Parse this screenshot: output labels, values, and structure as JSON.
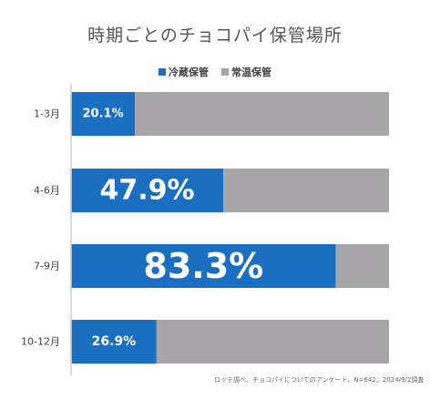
{
  "colors": {
    "refrigerated": "#1a6fc2",
    "room_temp": "#a7a5a7",
    "axis": "#cfcfcf"
  },
  "note": "ロッテ調べ、チョコパイについてのアンケート。N=642。2024/9/2調査",
  "chart_data": {
    "type": "bar",
    "orientation": "horizontal",
    "stacked": true,
    "title": "時期ごとのチョコパイ保管場所",
    "categories": [
      "1-3月",
      "4-6月",
      "7-9月",
      "10-12月"
    ],
    "series": [
      {
        "name": "冷蔵保管",
        "values": [
          20.1,
          47.9,
          83.3,
          26.9
        ],
        "labels": [
          "20.1%",
          "47.9%",
          "83.3%",
          "26.9%"
        ]
      },
      {
        "name": "常温保管",
        "values": [
          79.9,
          52.1,
          16.7,
          73.1
        ]
      }
    ],
    "xlim": [
      0,
      100
    ],
    "legend_position": "top",
    "grid": false
  }
}
